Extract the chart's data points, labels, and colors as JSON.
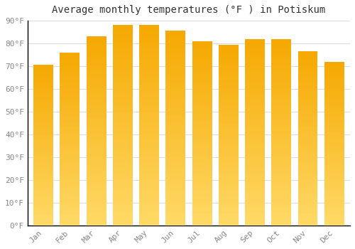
{
  "title": "Average monthly temperatures (°F ) in Potiskum",
  "months": [
    "Jan",
    "Feb",
    "Mar",
    "Apr",
    "May",
    "Jun",
    "Jul",
    "Aug",
    "Sep",
    "Oct",
    "Nov",
    "Dec"
  ],
  "values": [
    70.5,
    76,
    83,
    88,
    88,
    85.5,
    81,
    79.5,
    82,
    82,
    76.5,
    72
  ],
  "bar_color_dark": "#F5A800",
  "bar_color_light": "#FFD966",
  "background_color": "#FFFFFF",
  "grid_color": "#DDDDDD",
  "ylim": [
    0,
    90
  ],
  "yticks": [
    0,
    10,
    20,
    30,
    40,
    50,
    60,
    70,
    80,
    90
  ],
  "ytick_labels": [
    "0°F",
    "10°F",
    "20°F",
    "30°F",
    "40°F",
    "50°F",
    "60°F",
    "70°F",
    "80°F",
    "90°F"
  ],
  "title_fontsize": 10,
  "tick_fontsize": 8,
  "font_family": "monospace",
  "bar_width": 0.75
}
